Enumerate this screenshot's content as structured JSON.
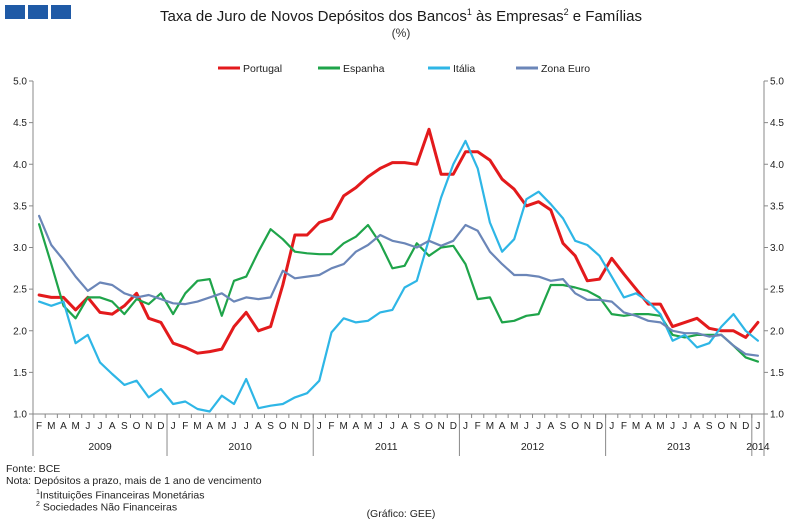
{
  "header": {
    "title_main": "Taxa de Juro de Novos Depósitos dos Bancos",
    "title_sup1": "1",
    "title_mid": " às Empresas",
    "title_sup2": "2",
    "title_end": " e Famílias",
    "subtitle": "(%)"
  },
  "colors": {
    "Portugal": "#e31a1c",
    "Espanha": "#1fa44a",
    "Itália": "#2eb6e6",
    "Zona Euro": "#6b86b8",
    "logo": "#1f5aa6"
  },
  "chart_data": {
    "type": "line",
    "title": "Taxa de Juro de Novos Depósitos dos Bancos às Empresas e Famílias",
    "ylabel": "(%)",
    "ylim": [
      1.0,
      5.0
    ],
    "yticks": [
      "1.0",
      "1.5",
      "2.0",
      "2.5",
      "3.0",
      "3.5",
      "4.0",
      "4.5",
      "5.0"
    ],
    "legend_position": "top",
    "grid": false,
    "x": [
      "F",
      "M",
      "A",
      "M",
      "J",
      "J",
      "A",
      "S",
      "O",
      "N",
      "D",
      "J",
      "F",
      "M",
      "A",
      "M",
      "J",
      "J",
      "A",
      "S",
      "O",
      "N",
      "D",
      "J",
      "F",
      "M",
      "A",
      "M",
      "J",
      "J",
      "A",
      "S",
      "O",
      "N",
      "D",
      "J",
      "F",
      "M",
      "A",
      "M",
      "J",
      "J",
      "A",
      "S",
      "O",
      "N",
      "D",
      "J",
      "F",
      "M",
      "A",
      "M",
      "J",
      "J",
      "A",
      "S",
      "O",
      "N",
      "D",
      "J"
    ],
    "years": [
      {
        "label": "2009",
        "start": 0,
        "end": 11
      },
      {
        "label": "2010",
        "start": 11,
        "end": 23
      },
      {
        "label": "2011",
        "start": 23,
        "end": 35
      },
      {
        "label": "2012",
        "start": 35,
        "end": 47
      },
      {
        "label": "2013",
        "start": 47,
        "end": 59
      },
      {
        "label": "2014",
        "start": 59,
        "end": 60
      }
    ],
    "series": [
      {
        "name": "Portugal",
        "values": [
          2.43,
          2.4,
          2.4,
          2.25,
          2.4,
          2.22,
          2.2,
          2.3,
          2.45,
          2.15,
          2.1,
          1.85,
          1.8,
          1.73,
          1.75,
          1.78,
          2.05,
          2.22,
          2.0,
          2.05,
          2.55,
          3.15,
          3.15,
          3.3,
          3.35,
          3.62,
          3.72,
          3.85,
          3.95,
          4.02,
          4.02,
          4.0,
          4.42,
          3.88,
          3.88,
          4.15,
          4.15,
          4.05,
          3.82,
          3.7,
          3.5,
          3.55,
          3.45,
          3.05,
          2.9,
          2.6,
          2.62,
          2.87,
          2.68,
          2.5,
          2.32,
          2.32,
          2.05,
          2.1,
          2.15,
          2.03,
          2.0,
          2.0,
          1.92,
          2.1
        ]
      },
      {
        "name": "Espanha",
        "values": [
          3.28,
          2.8,
          2.3,
          2.15,
          2.4,
          2.4,
          2.35,
          2.2,
          2.38,
          2.32,
          2.45,
          2.2,
          2.45,
          2.6,
          2.62,
          2.18,
          2.6,
          2.65,
          2.95,
          3.22,
          3.1,
          2.95,
          2.93,
          2.92,
          2.92,
          3.05,
          3.13,
          3.27,
          3.05,
          2.75,
          2.78,
          3.05,
          2.9,
          3.0,
          3.02,
          2.8,
          2.38,
          2.4,
          2.1,
          2.12,
          2.18,
          2.2,
          2.55,
          2.55,
          2.52,
          2.48,
          2.4,
          2.2,
          2.18,
          2.2,
          2.2,
          2.18,
          1.95,
          1.92,
          1.95,
          1.95,
          1.95,
          1.82,
          1.68,
          1.63
        ]
      },
      {
        "name": "Itália",
        "values": [
          2.35,
          2.3,
          2.35,
          1.85,
          1.95,
          1.62,
          1.48,
          1.35,
          1.4,
          1.2,
          1.3,
          1.12,
          1.15,
          1.06,
          1.03,
          1.22,
          1.12,
          1.42,
          1.07,
          1.1,
          1.12,
          1.2,
          1.25,
          1.4,
          1.98,
          2.15,
          2.1,
          2.12,
          2.22,
          2.25,
          2.52,
          2.6,
          3.1,
          3.6,
          4.0,
          4.28,
          3.95,
          3.3,
          2.95,
          3.1,
          3.58,
          3.67,
          3.52,
          3.35,
          3.08,
          3.03,
          2.9,
          2.65,
          2.4,
          2.45,
          2.35,
          2.2,
          1.88,
          1.95,
          1.8,
          1.85,
          2.05,
          2.2,
          2.0,
          1.88
        ]
      },
      {
        "name": "Zona Euro",
        "values": [
          3.38,
          3.03,
          2.85,
          2.65,
          2.48,
          2.58,
          2.55,
          2.45,
          2.4,
          2.43,
          2.38,
          2.33,
          2.32,
          2.35,
          2.4,
          2.45,
          2.35,
          2.4,
          2.38,
          2.4,
          2.72,
          2.63,
          2.65,
          2.67,
          2.75,
          2.8,
          2.95,
          3.03,
          3.15,
          3.08,
          3.05,
          3.0,
          3.08,
          3.02,
          3.08,
          3.27,
          3.2,
          2.95,
          2.8,
          2.67,
          2.67,
          2.65,
          2.6,
          2.62,
          2.45,
          2.37,
          2.37,
          2.35,
          2.22,
          2.18,
          2.12,
          2.1,
          2.0,
          1.97,
          1.97,
          1.93,
          1.95,
          1.82,
          1.72,
          1.7
        ]
      }
    ]
  },
  "footer": {
    "fonte": "Fonte: BCE",
    "nota": "Nota: Depósitos a prazo, mais de 1 ano de vencimento",
    "note1_sup": "1",
    "note1": "Instituições Financeiras Monetárias",
    "note2_sup": "2",
    "note2": "Sociedades Não Financeiras",
    "credit": "(Gráfico: GEE)"
  }
}
